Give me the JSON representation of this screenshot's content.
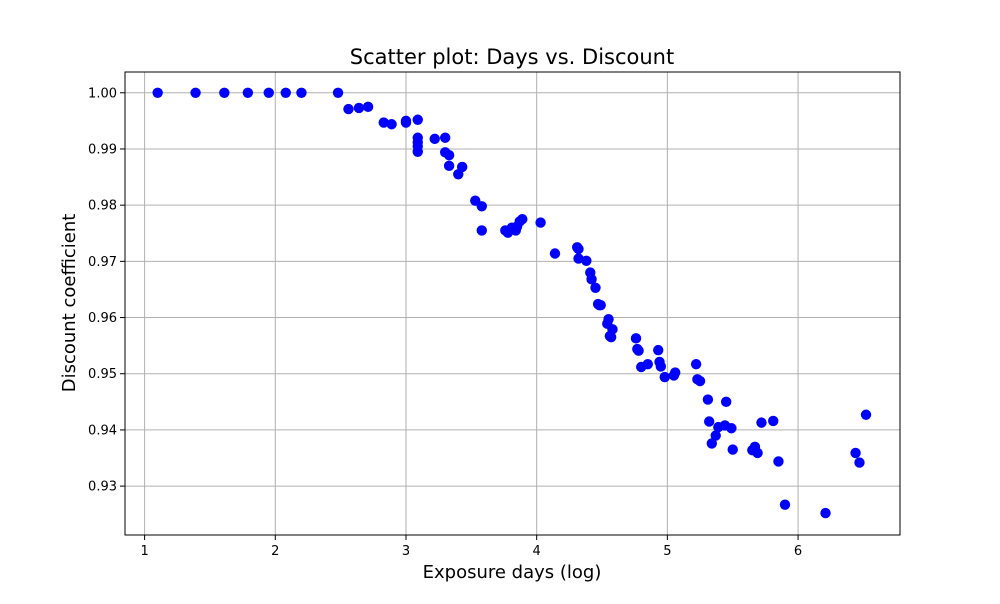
{
  "chart_data": {
    "type": "scatter",
    "title": "Scatter plot: Days vs. Discount",
    "xlabel": "Exposure days (log)",
    "ylabel": "Discount coefficient",
    "xlim": [
      0.85,
      6.78
    ],
    "ylim": [
      0.9213,
      1.0037
    ],
    "xticks": [
      1,
      2,
      3,
      4,
      5,
      6
    ],
    "yticks": [
      0.93,
      0.94,
      0.95,
      0.96,
      0.97,
      0.98,
      0.99,
      1.0
    ],
    "xtick_labels": [
      "1",
      "2",
      "3",
      "4",
      "5",
      "6"
    ],
    "ytick_labels": [
      "0.93",
      "0.94",
      "0.95",
      "0.96",
      "0.97",
      "0.98",
      "0.99",
      "1.00"
    ],
    "grid": true,
    "marker_color": "#0000ff",
    "series": [
      {
        "points": [
          [
            1.1,
            1.0
          ],
          [
            1.39,
            1.0
          ],
          [
            1.61,
            1.0
          ],
          [
            1.79,
            1.0
          ],
          [
            1.95,
            1.0
          ],
          [
            2.08,
            1.0
          ],
          [
            2.2,
            1.0
          ],
          [
            2.48,
            1.0
          ],
          [
            2.56,
            0.9971
          ],
          [
            2.64,
            0.9973
          ],
          [
            2.71,
            0.9975
          ],
          [
            2.83,
            0.9947
          ],
          [
            2.89,
            0.9944
          ],
          [
            3.0,
            0.9947
          ],
          [
            3.0,
            0.995
          ],
          [
            3.09,
            0.9952
          ],
          [
            3.09,
            0.992
          ],
          [
            3.09,
            0.9912
          ],
          [
            3.09,
            0.9905
          ],
          [
            3.09,
            0.9895
          ],
          [
            3.22,
            0.9918
          ],
          [
            3.3,
            0.992
          ],
          [
            3.3,
            0.9894
          ],
          [
            3.33,
            0.9889
          ],
          [
            3.33,
            0.987
          ],
          [
            3.4,
            0.9855
          ],
          [
            3.43,
            0.9868
          ],
          [
            3.53,
            0.9808
          ],
          [
            3.58,
            0.9798
          ],
          [
            3.58,
            0.9755
          ],
          [
            3.76,
            0.9755
          ],
          [
            3.78,
            0.9751
          ],
          [
            3.81,
            0.976
          ],
          [
            3.84,
            0.9755
          ],
          [
            3.85,
            0.9762
          ],
          [
            3.87,
            0.9771
          ],
          [
            3.89,
            0.9775
          ],
          [
            4.03,
            0.9769
          ],
          [
            4.14,
            0.9714
          ],
          [
            4.31,
            0.9725
          ],
          [
            4.32,
            0.9722
          ],
          [
            4.32,
            0.9705
          ],
          [
            4.38,
            0.9701
          ],
          [
            4.41,
            0.968
          ],
          [
            4.42,
            0.9668
          ],
          [
            4.45,
            0.9653
          ],
          [
            4.47,
            0.9624
          ],
          [
            4.48,
            0.9622
          ],
          [
            4.49,
            0.9622
          ],
          [
            4.54,
            0.9589
          ],
          [
            4.55,
            0.9597
          ],
          [
            4.56,
            0.9567
          ],
          [
            4.57,
            0.9565
          ],
          [
            4.58,
            0.9579
          ],
          [
            4.76,
            0.9563
          ],
          [
            4.77,
            0.9544
          ],
          [
            4.78,
            0.9541
          ],
          [
            4.8,
            0.9512
          ],
          [
            4.85,
            0.9517
          ],
          [
            4.93,
            0.9542
          ],
          [
            4.94,
            0.9521
          ],
          [
            4.95,
            0.9513
          ],
          [
            4.98,
            0.9494
          ],
          [
            5.05,
            0.9497
          ],
          [
            5.06,
            0.9502
          ],
          [
            5.22,
            0.9517
          ],
          [
            5.23,
            0.949
          ],
          [
            5.25,
            0.9487
          ],
          [
            5.31,
            0.9454
          ],
          [
            5.32,
            0.9415
          ],
          [
            5.34,
            0.9376
          ],
          [
            5.37,
            0.939
          ],
          [
            5.39,
            0.9405
          ],
          [
            5.44,
            0.9408
          ],
          [
            5.45,
            0.945
          ],
          [
            5.49,
            0.9403
          ],
          [
            5.5,
            0.9365
          ],
          [
            5.65,
            0.9364
          ],
          [
            5.67,
            0.937
          ],
          [
            5.69,
            0.9359
          ],
          [
            5.72,
            0.9413
          ],
          [
            5.81,
            0.9416
          ],
          [
            5.85,
            0.9344
          ],
          [
            5.9,
            0.9267
          ],
          [
            6.21,
            0.9252
          ],
          [
            6.44,
            0.9359
          ],
          [
            6.47,
            0.9342
          ],
          [
            6.52,
            0.9427
          ]
        ]
      }
    ]
  }
}
